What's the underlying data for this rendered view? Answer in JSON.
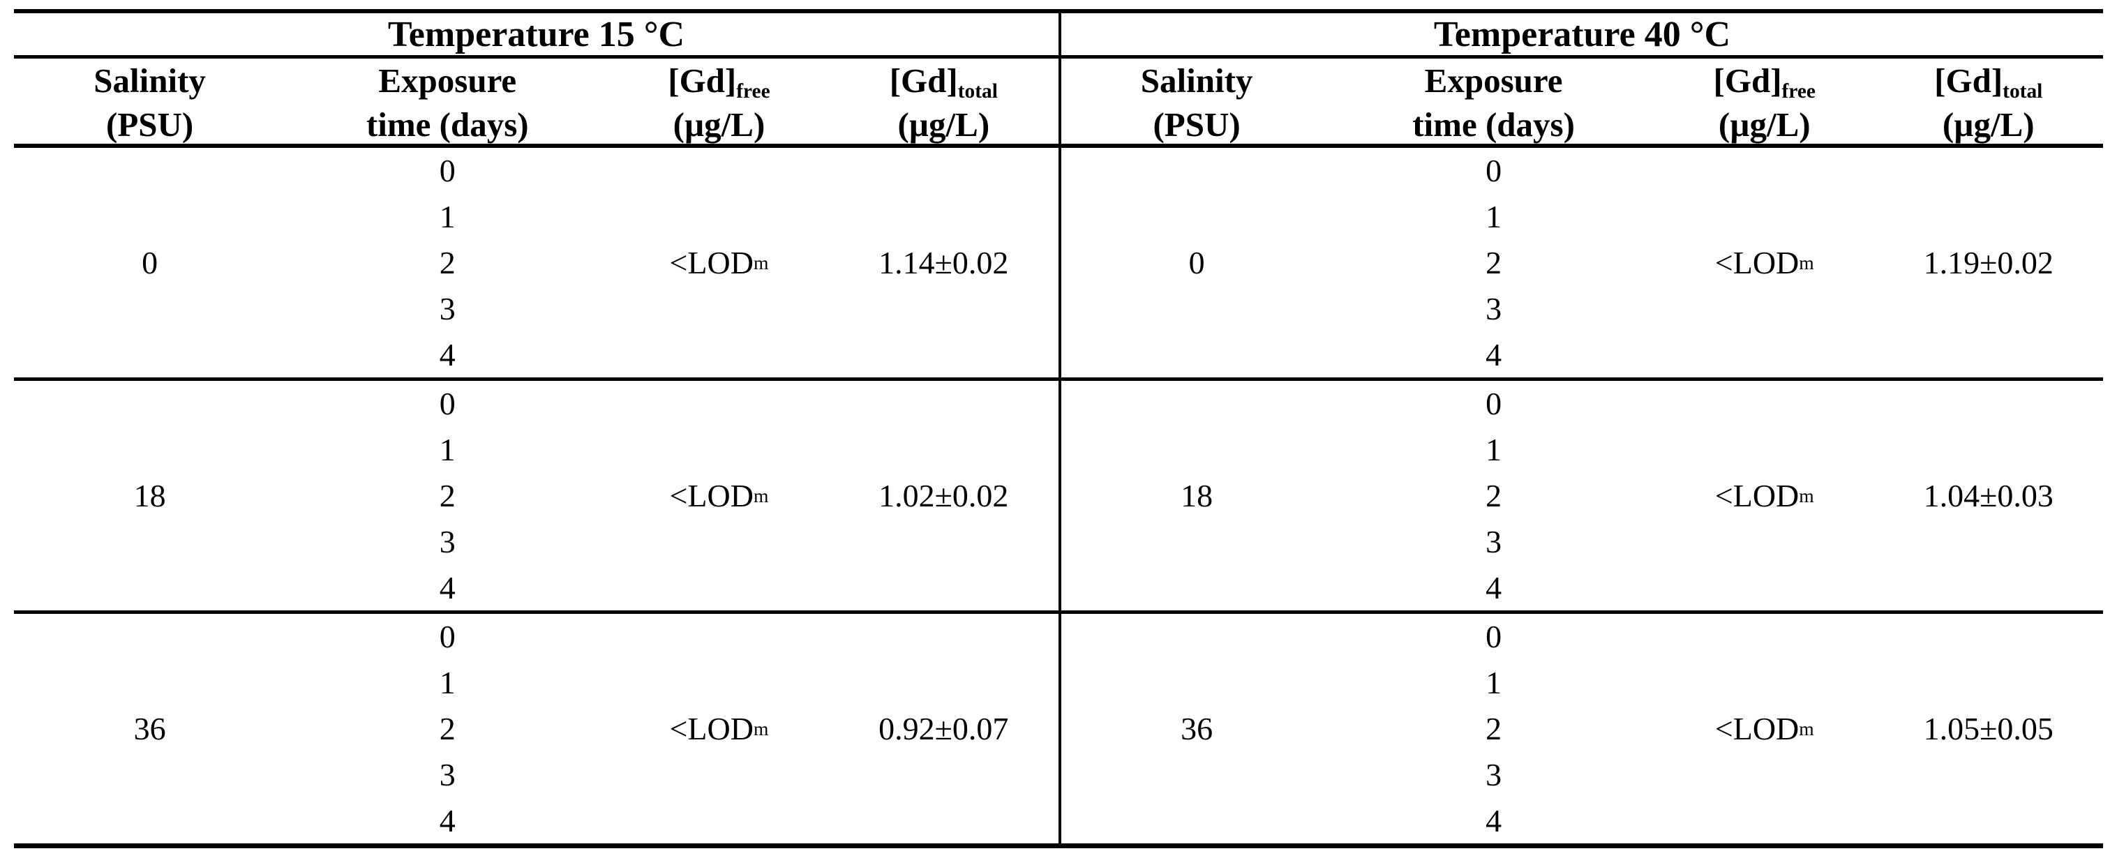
{
  "table": {
    "section_headers": [
      {
        "label": "Temperature 15 °C"
      },
      {
        "label": "Temperature 40 °C"
      }
    ],
    "column_headers": [
      {
        "line1": "Salinity",
        "sub1": "",
        "line2": "(PSU)"
      },
      {
        "line1": "Exposure",
        "sub1": "",
        "line2": "time (days)"
      },
      {
        "line1": "[Gd]",
        "sub1": "free",
        "line2": "(µg/L)"
      },
      {
        "line1": "[Gd]",
        "sub1": "total",
        "line2": "(µg/L)"
      }
    ],
    "blocks": [
      {
        "left": {
          "salinity": "0",
          "exposure": [
            "0",
            "1",
            "2",
            "3",
            "4"
          ],
          "gd_free": "<LOD",
          "gd_free_sub": "m",
          "gd_total": "1.14±0.02"
        },
        "right": {
          "salinity": "0",
          "exposure": [
            "0",
            "1",
            "2",
            "3",
            "4"
          ],
          "gd_free": "<LOD",
          "gd_free_sub": "m",
          "gd_total": "1.19±0.02"
        }
      },
      {
        "left": {
          "salinity": "18",
          "exposure": [
            "0",
            "1",
            "2",
            "3",
            "4"
          ],
          "gd_free": "<LOD",
          "gd_free_sub": "m",
          "gd_total": "1.02±0.02"
        },
        "right": {
          "salinity": "18",
          "exposure": [
            "0",
            "1",
            "2",
            "3",
            "4"
          ],
          "gd_free": "<LOD",
          "gd_free_sub": "m",
          "gd_total": "1.04±0.03"
        }
      },
      {
        "left": {
          "salinity": "36",
          "exposure": [
            "0",
            "1",
            "2",
            "3",
            "4"
          ],
          "gd_free": "<LOD",
          "gd_free_sub": "m",
          "gd_total": "0.92±0.07"
        },
        "right": {
          "salinity": "36",
          "exposure": [
            "0",
            "1",
            "2",
            "3",
            "4"
          ],
          "gd_free": "<LOD",
          "gd_free_sub": "m",
          "gd_total": "1.05±0.05"
        }
      }
    ]
  },
  "chart_data": {
    "type": "table",
    "sections": [
      {
        "temperature": "15 °C",
        "columns": [
          "Salinity (PSU)",
          "Exposure time (days)",
          "[Gd]free (µg/L)",
          "[Gd]total (µg/L)"
        ],
        "rows": [
          {
            "salinity_psu": 0,
            "exposure_time_days": [
              0,
              1,
              2,
              3,
              4
            ],
            "gd_free_ug_per_l": "<LODm",
            "gd_total_ug_per_l": "1.14±0.02"
          },
          {
            "salinity_psu": 18,
            "exposure_time_days": [
              0,
              1,
              2,
              3,
              4
            ],
            "gd_free_ug_per_l": "<LODm",
            "gd_total_ug_per_l": "1.02±0.02"
          },
          {
            "salinity_psu": 36,
            "exposure_time_days": [
              0,
              1,
              2,
              3,
              4
            ],
            "gd_free_ug_per_l": "<LODm",
            "gd_total_ug_per_l": "0.92±0.07"
          }
        ]
      },
      {
        "temperature": "40 °C",
        "columns": [
          "Salinity (PSU)",
          "Exposure time (days)",
          "[Gd]free (µg/L)",
          "[Gd]total (µg/L)"
        ],
        "rows": [
          {
            "salinity_psu": 0,
            "exposure_time_days": [
              0,
              1,
              2,
              3,
              4
            ],
            "gd_free_ug_per_l": "<LODm",
            "gd_total_ug_per_l": "1.19±0.02"
          },
          {
            "salinity_psu": 18,
            "exposure_time_days": [
              0,
              1,
              2,
              3,
              4
            ],
            "gd_free_ug_per_l": "<LODm",
            "gd_total_ug_per_l": "1.04±0.03"
          },
          {
            "salinity_psu": 36,
            "exposure_time_days": [
              0,
              1,
              2,
              3,
              4
            ],
            "gd_free_ug_per_l": "<LODm",
            "gd_total_ug_per_l": "1.05±0.05"
          }
        ]
      }
    ]
  }
}
